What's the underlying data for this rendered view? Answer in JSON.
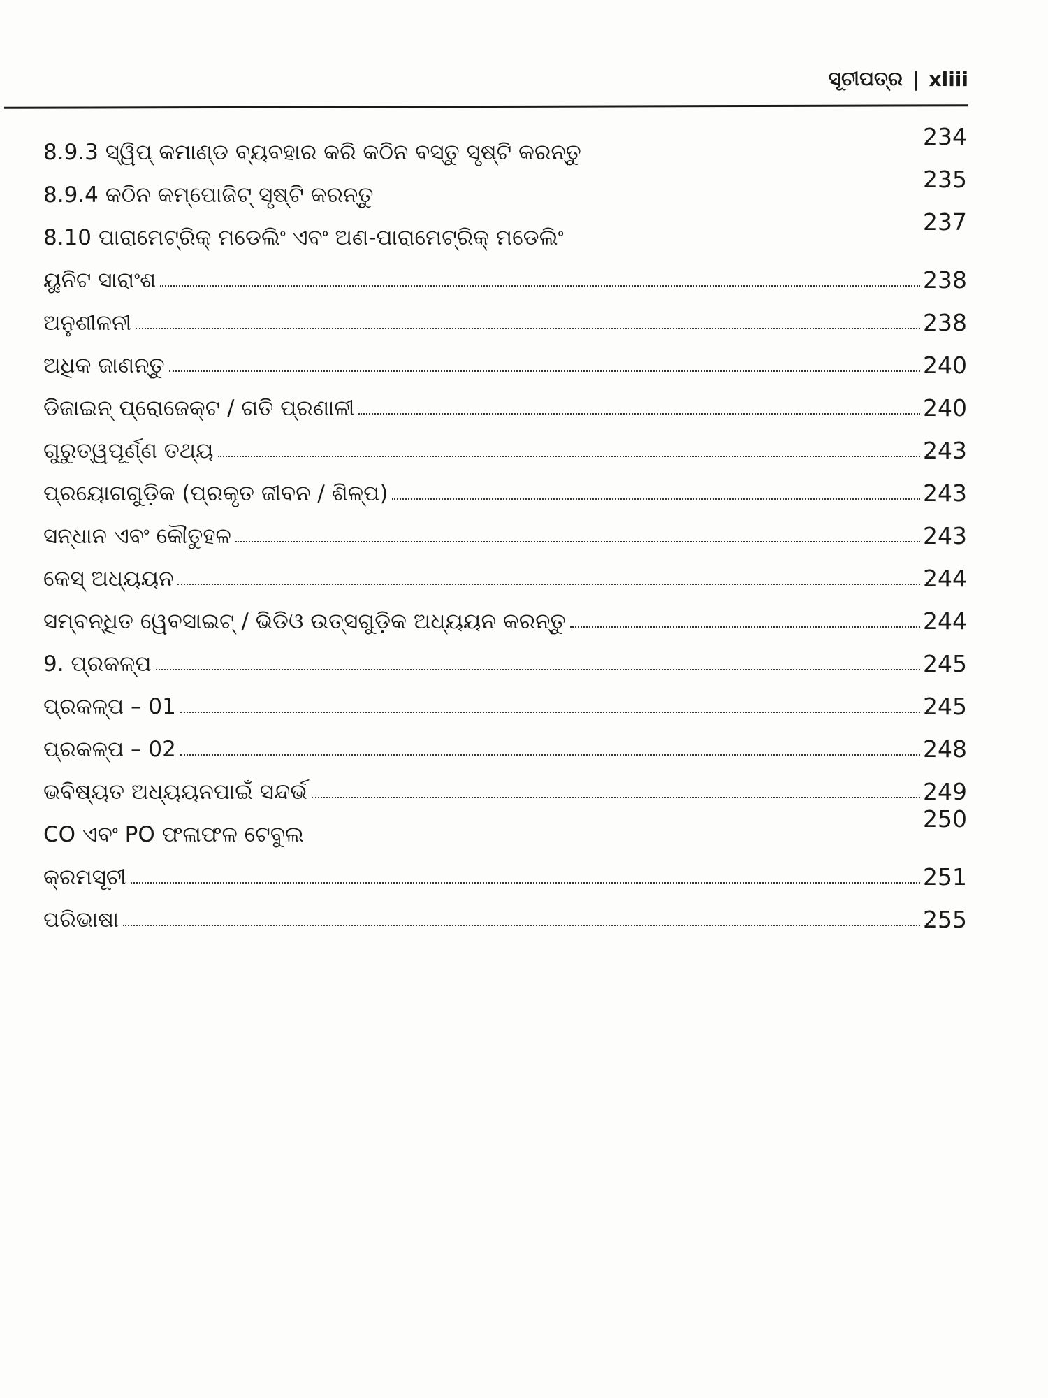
{
  "header": {
    "title": "ସୂଚୀପତ୍ର",
    "separator": "|",
    "page": "xliii"
  },
  "entries": [
    {
      "label": "8.9.3 ସ୍ୱିପ୍ କମାଣ୍ଡ ବ୍ୟବହାର କରି କଠିନ ବସ୍ତୁ ସୃଷ୍ଟି କରନ୍ତୁ",
      "page": "234",
      "dots": false
    },
    {
      "label": "8.9.4 କଠିନ କମ୍ପୋଜିଟ୍ ସୃଷ୍ଟି କରନ୍ତୁ",
      "page": "235",
      "dots": false
    },
    {
      "label": "8.10 ପାରାମେଟ୍ରିକ୍ ମଡେଲିଂ ଏବଂ ଅଣ-ପାରାମେଟ୍ରିକ୍ ମଡେଲିଂ",
      "page": "237",
      "dots": false
    },
    {
      "label": "ୟୁନିଟ ସାରାଂଶ",
      "page": "238",
      "dots": true
    },
    {
      "label": "ଅନୁଶୀଳନୀ",
      "page": "238",
      "dots": true
    },
    {
      "label": "ଅଧିକ ଜାଣନ୍ତୁ",
      "page": "240",
      "dots": true
    },
    {
      "label": "ଡିଜାଇନ୍ ପ୍ରୋଜେକ୍ଟ / ଗତି ପ୍ରଣାଳୀ",
      "page": "240",
      "dots": true
    },
    {
      "label": "ଗୁରୁତ୍ୱପୂର୍ଣ୍ଣ ତଥ୍ୟ",
      "page": "243",
      "dots": true
    },
    {
      "label": "ପ୍ରୟୋଗଗୁଡ଼ିକ (ପ୍ରକୃତ ଜୀବନ / ଶିଳ୍ପ)",
      "page": "243",
      "dots": true
    },
    {
      "label": "ସନ୍ଧାନ ଏବଂ କୌତୁହଳ",
      "page": "243",
      "dots": true
    },
    {
      "label": "କେସ୍ ଅଧ୍ୟୟନ",
      "page": "244",
      "dots": true
    },
    {
      "label": "ସମ୍ବନ୍ଧିତ ୱେବସାଇଟ୍ / ଭିଡିଓ ଉତ୍ସଗୁଡ଼ିକ ଅଧ୍ୟୟନ କରନ୍ତୁ",
      "page": "244",
      "dots": true
    },
    {
      "label": "9. ପ୍ରକଳ୍ପ",
      "page": "245",
      "dots": true
    },
    {
      "label": "ପ୍ରକଳ୍ପ – 01",
      "page": "245",
      "dots": true
    },
    {
      "label": "ପ୍ରକଳ୍ପ – 02",
      "page": "248",
      "dots": true
    },
    {
      "label": "ଭବିଷ୍ୟତ ଅଧ୍ୟୟନପାଇଁ ସନ୍ଦର୍ଭ",
      "page": "249",
      "dots": true
    },
    {
      "label": "CO ଏବଂ PO ଫଳାଫଳ ଟେବୁଲ",
      "page": "250",
      "dots": false
    },
    {
      "label": "କ୍ରମସୂଚୀ",
      "page": "251",
      "dots": true
    },
    {
      "label": "ପରିଭାଷା",
      "page": "255",
      "dots": true
    }
  ]
}
